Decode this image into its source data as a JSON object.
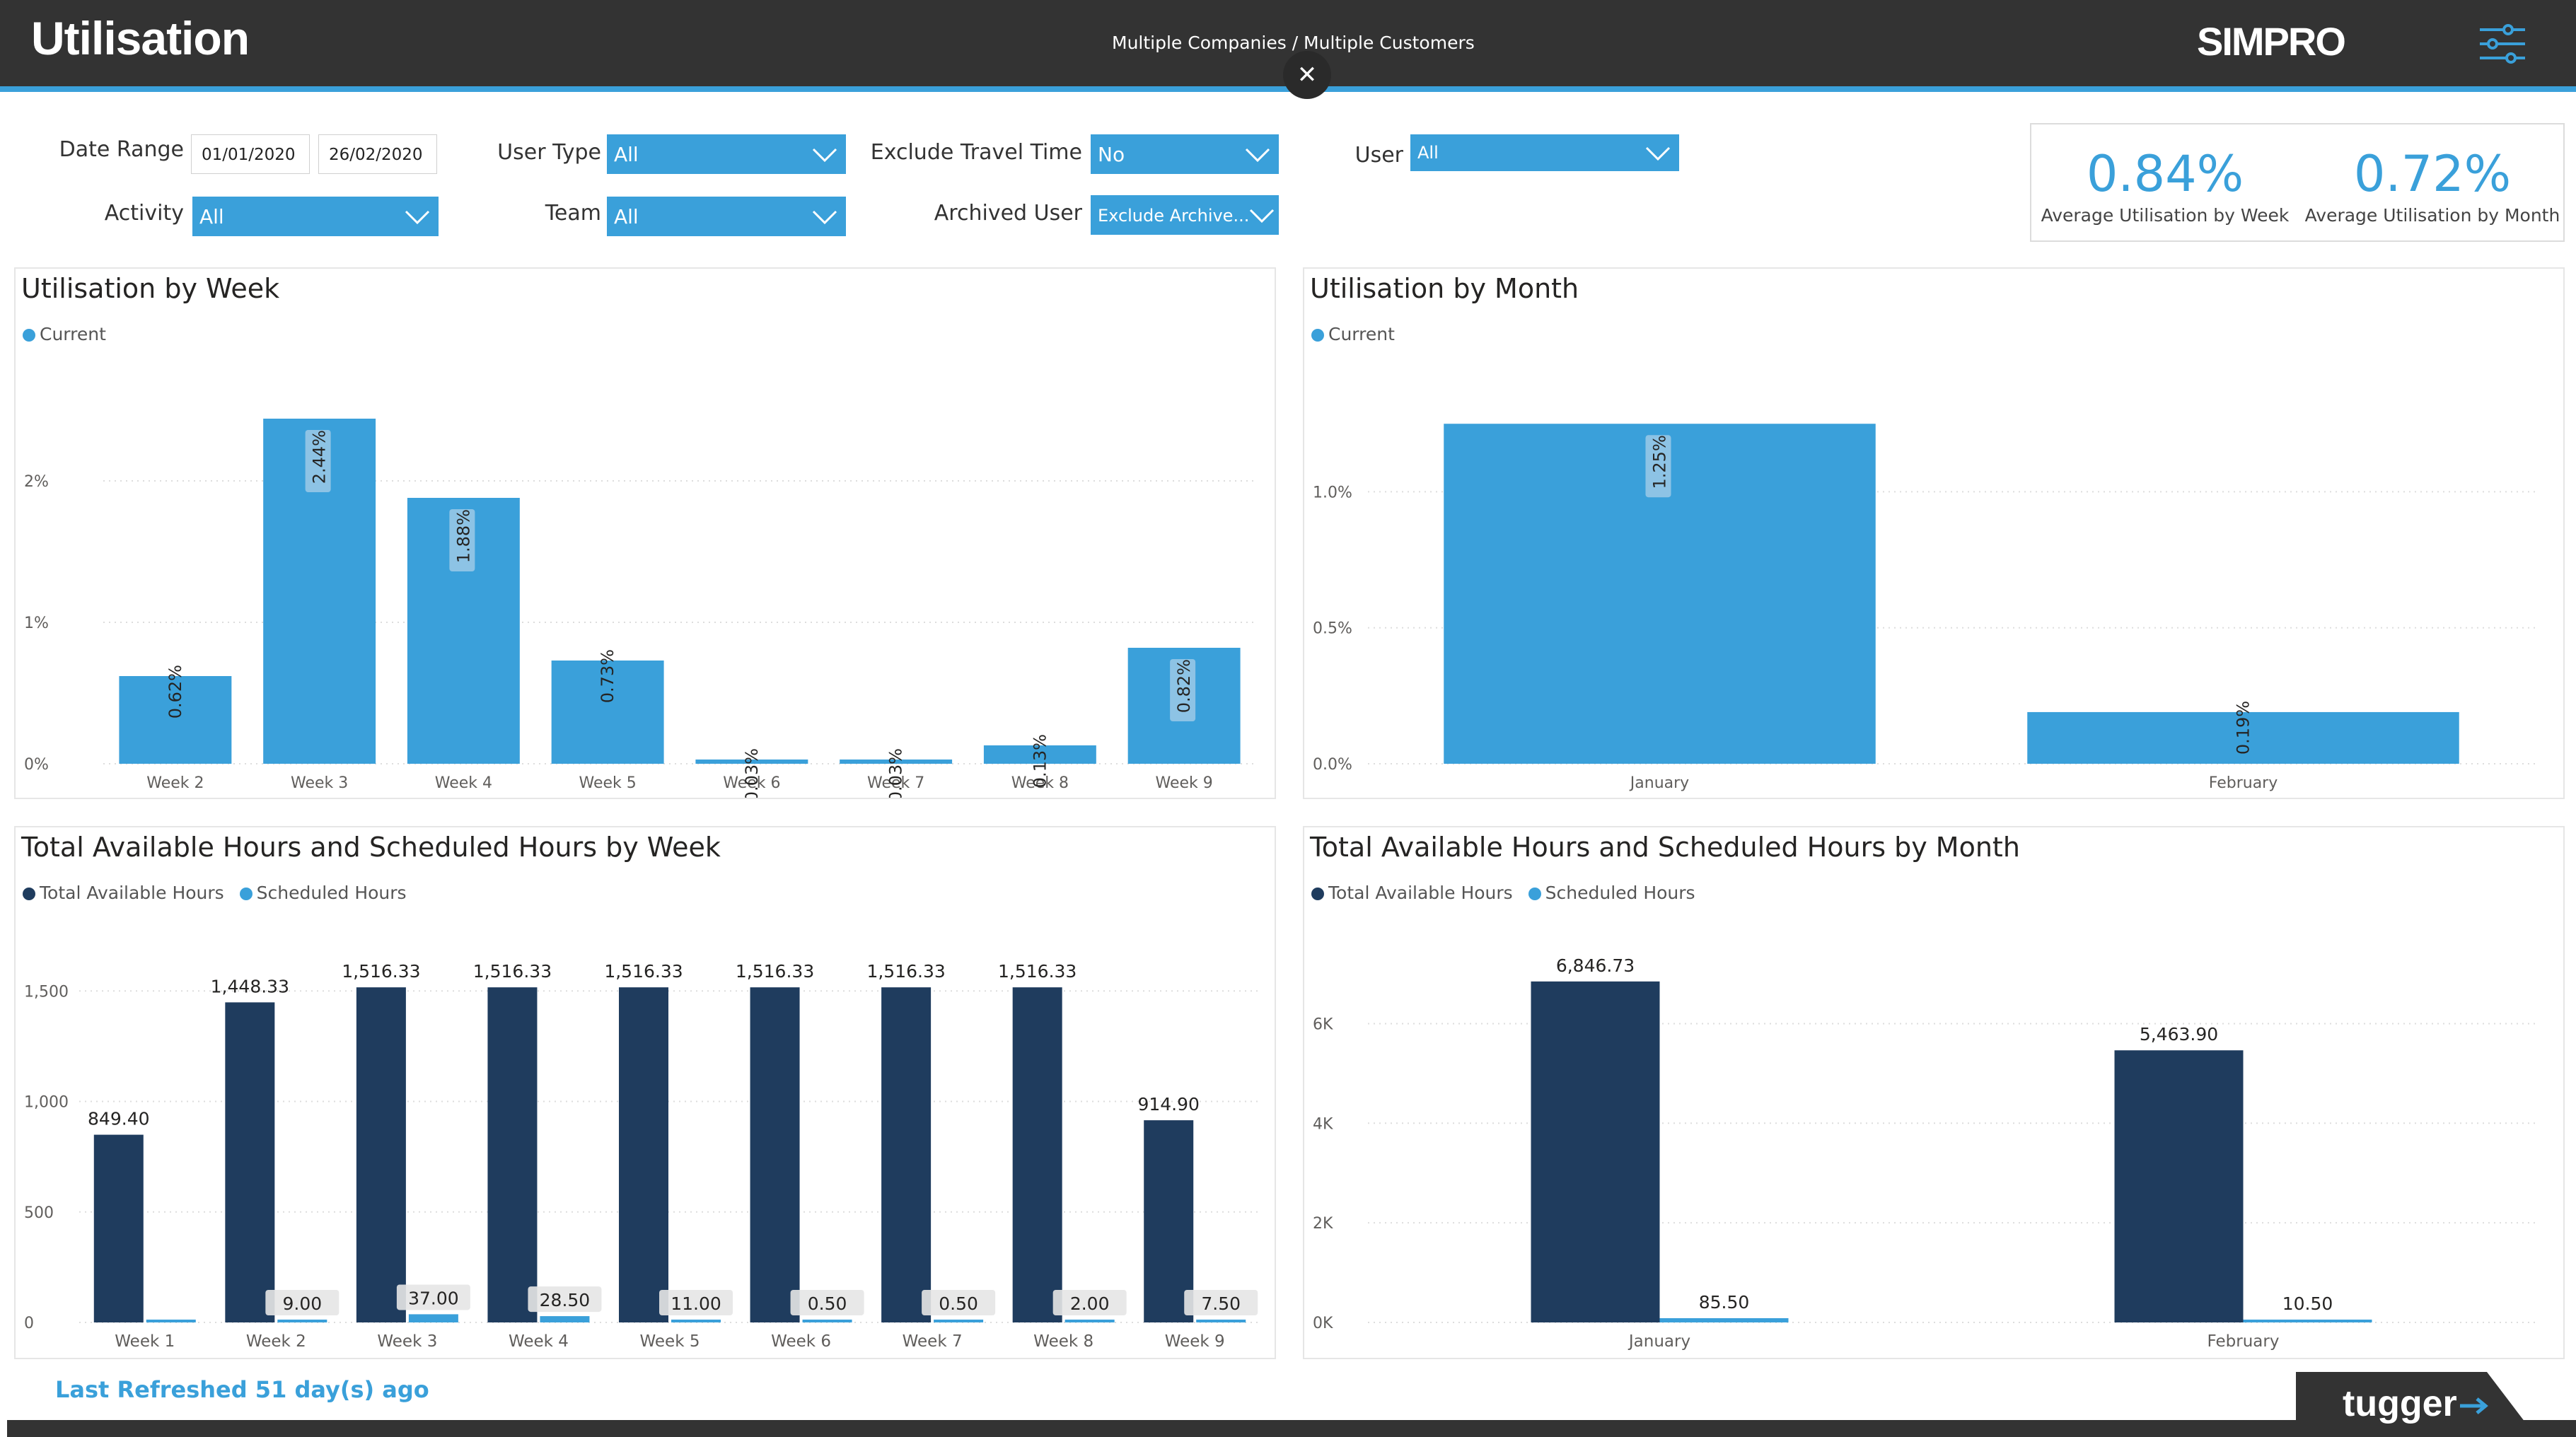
{
  "header": {
    "title": "Utilisation",
    "context": "Multiple Companies / Multiple Customers",
    "close_symbol": "✕",
    "brand": "SIMPRO"
  },
  "filters": {
    "date_range_label": "Date Range",
    "date_start": "01/01/2020",
    "date_end": "26/02/2020",
    "user_type_label": "User Type",
    "user_type_value": "All",
    "exclude_travel_label": "Exclude Travel Time",
    "exclude_travel_value": "No",
    "user_label": "User",
    "user_value": "All",
    "activity_label": "Activity",
    "activity_value": "All",
    "team_label": "Team",
    "team_value": "All",
    "archived_label": "Archived User",
    "archived_value": "Exclude Archive..."
  },
  "kpis": [
    {
      "value": "0.84%",
      "caption": "Average Utilisation by Week"
    },
    {
      "value": "0.72%",
      "caption": "Average Utilisation by Month"
    }
  ],
  "footer": {
    "refresh": "Last Refreshed 51 day(s) ago",
    "brand": "tugger"
  },
  "colors": {
    "accent": "#3aa0da",
    "dark_series": "#1f3c5e",
    "header_bg": "#333333"
  },
  "chart_data": [
    {
      "type": "bar",
      "title": "Utilisation by Week",
      "legend": [
        "Current"
      ],
      "categories": [
        "Week 2",
        "Week 3",
        "Week 4",
        "Week 5",
        "Week 6",
        "Week 7",
        "Week 8",
        "Week 9"
      ],
      "series": [
        {
          "name": "Current",
          "values": [
            0.62,
            2.44,
            1.88,
            0.73,
            0.03,
            0.03,
            0.13,
            0.82
          ]
        }
      ],
      "labels": [
        "0.62%",
        "2.44%",
        "1.88%",
        "0.73%",
        "0.03%",
        "0.03%",
        "0.13%",
        "0.82%"
      ],
      "yticks": [
        0,
        1,
        2
      ],
      "ytick_labels": [
        "0%",
        "1%",
        "2%"
      ],
      "ylim": [
        0,
        2.5
      ]
    },
    {
      "type": "bar",
      "title": "Utilisation by Month",
      "legend": [
        "Current"
      ],
      "categories": [
        "January",
        "February"
      ],
      "series": [
        {
          "name": "Current",
          "values": [
            1.25,
            0.19
          ]
        }
      ],
      "labels": [
        "1.25%",
        "0.19%"
      ],
      "yticks": [
        0,
        0.5,
        1.0
      ],
      "ytick_labels": [
        "0.0%",
        "0.5%",
        "1.0%"
      ],
      "ylim": [
        0,
        1.3
      ]
    },
    {
      "type": "bar",
      "title": "Total Available Hours and Scheduled Hours by Week",
      "legend": [
        "Total Available Hours",
        "Scheduled Hours"
      ],
      "categories": [
        "Week 1",
        "Week 2",
        "Week 3",
        "Week 4",
        "Week 5",
        "Week 6",
        "Week 7",
        "Week 8",
        "Week 9"
      ],
      "series": [
        {
          "name": "Total Available Hours",
          "values": [
            849.4,
            1448.33,
            1516.33,
            1516.33,
            1516.33,
            1516.33,
            1516.33,
            1516.33,
            914.9
          ]
        },
        {
          "name": "Scheduled Hours",
          "values": [
            0,
            9.0,
            37.0,
            28.5,
            11.0,
            0.5,
            0.5,
            2.0,
            7.5
          ]
        }
      ],
      "labels_total": [
        "849.40",
        "1,448.33",
        "1,516.33",
        "1,516.33",
        "1,516.33",
        "1,516.33",
        "1,516.33",
        "1,516.33",
        "914.90"
      ],
      "labels_scheduled": [
        "",
        "9.00",
        "37.00",
        "28.50",
        "11.00",
        "0.50",
        "0.50",
        "2.00",
        "7.50"
      ],
      "yticks": [
        0,
        500,
        1000,
        1500
      ],
      "ytick_labels": [
        "0",
        "500",
        "1,000",
        "1,500"
      ],
      "ylim": [
        0,
        1600
      ]
    },
    {
      "type": "bar",
      "title": "Total Available Hours and Scheduled Hours by Month",
      "legend": [
        "Total Available Hours",
        "Scheduled Hours"
      ],
      "categories": [
        "January",
        "February"
      ],
      "series": [
        {
          "name": "Total Available Hours",
          "values": [
            6846.73,
            5463.9
          ]
        },
        {
          "name": "Scheduled Hours",
          "values": [
            85.5,
            10.5
          ]
        }
      ],
      "labels_total": [
        "6,846.73",
        "5,463.90"
      ],
      "labels_scheduled": [
        "85.50",
        "10.50"
      ],
      "yticks": [
        0,
        2000,
        4000,
        6000
      ],
      "ytick_labels": [
        "0K",
        "2K",
        "4K",
        "6K"
      ],
      "ylim": [
        0,
        7100
      ]
    }
  ]
}
